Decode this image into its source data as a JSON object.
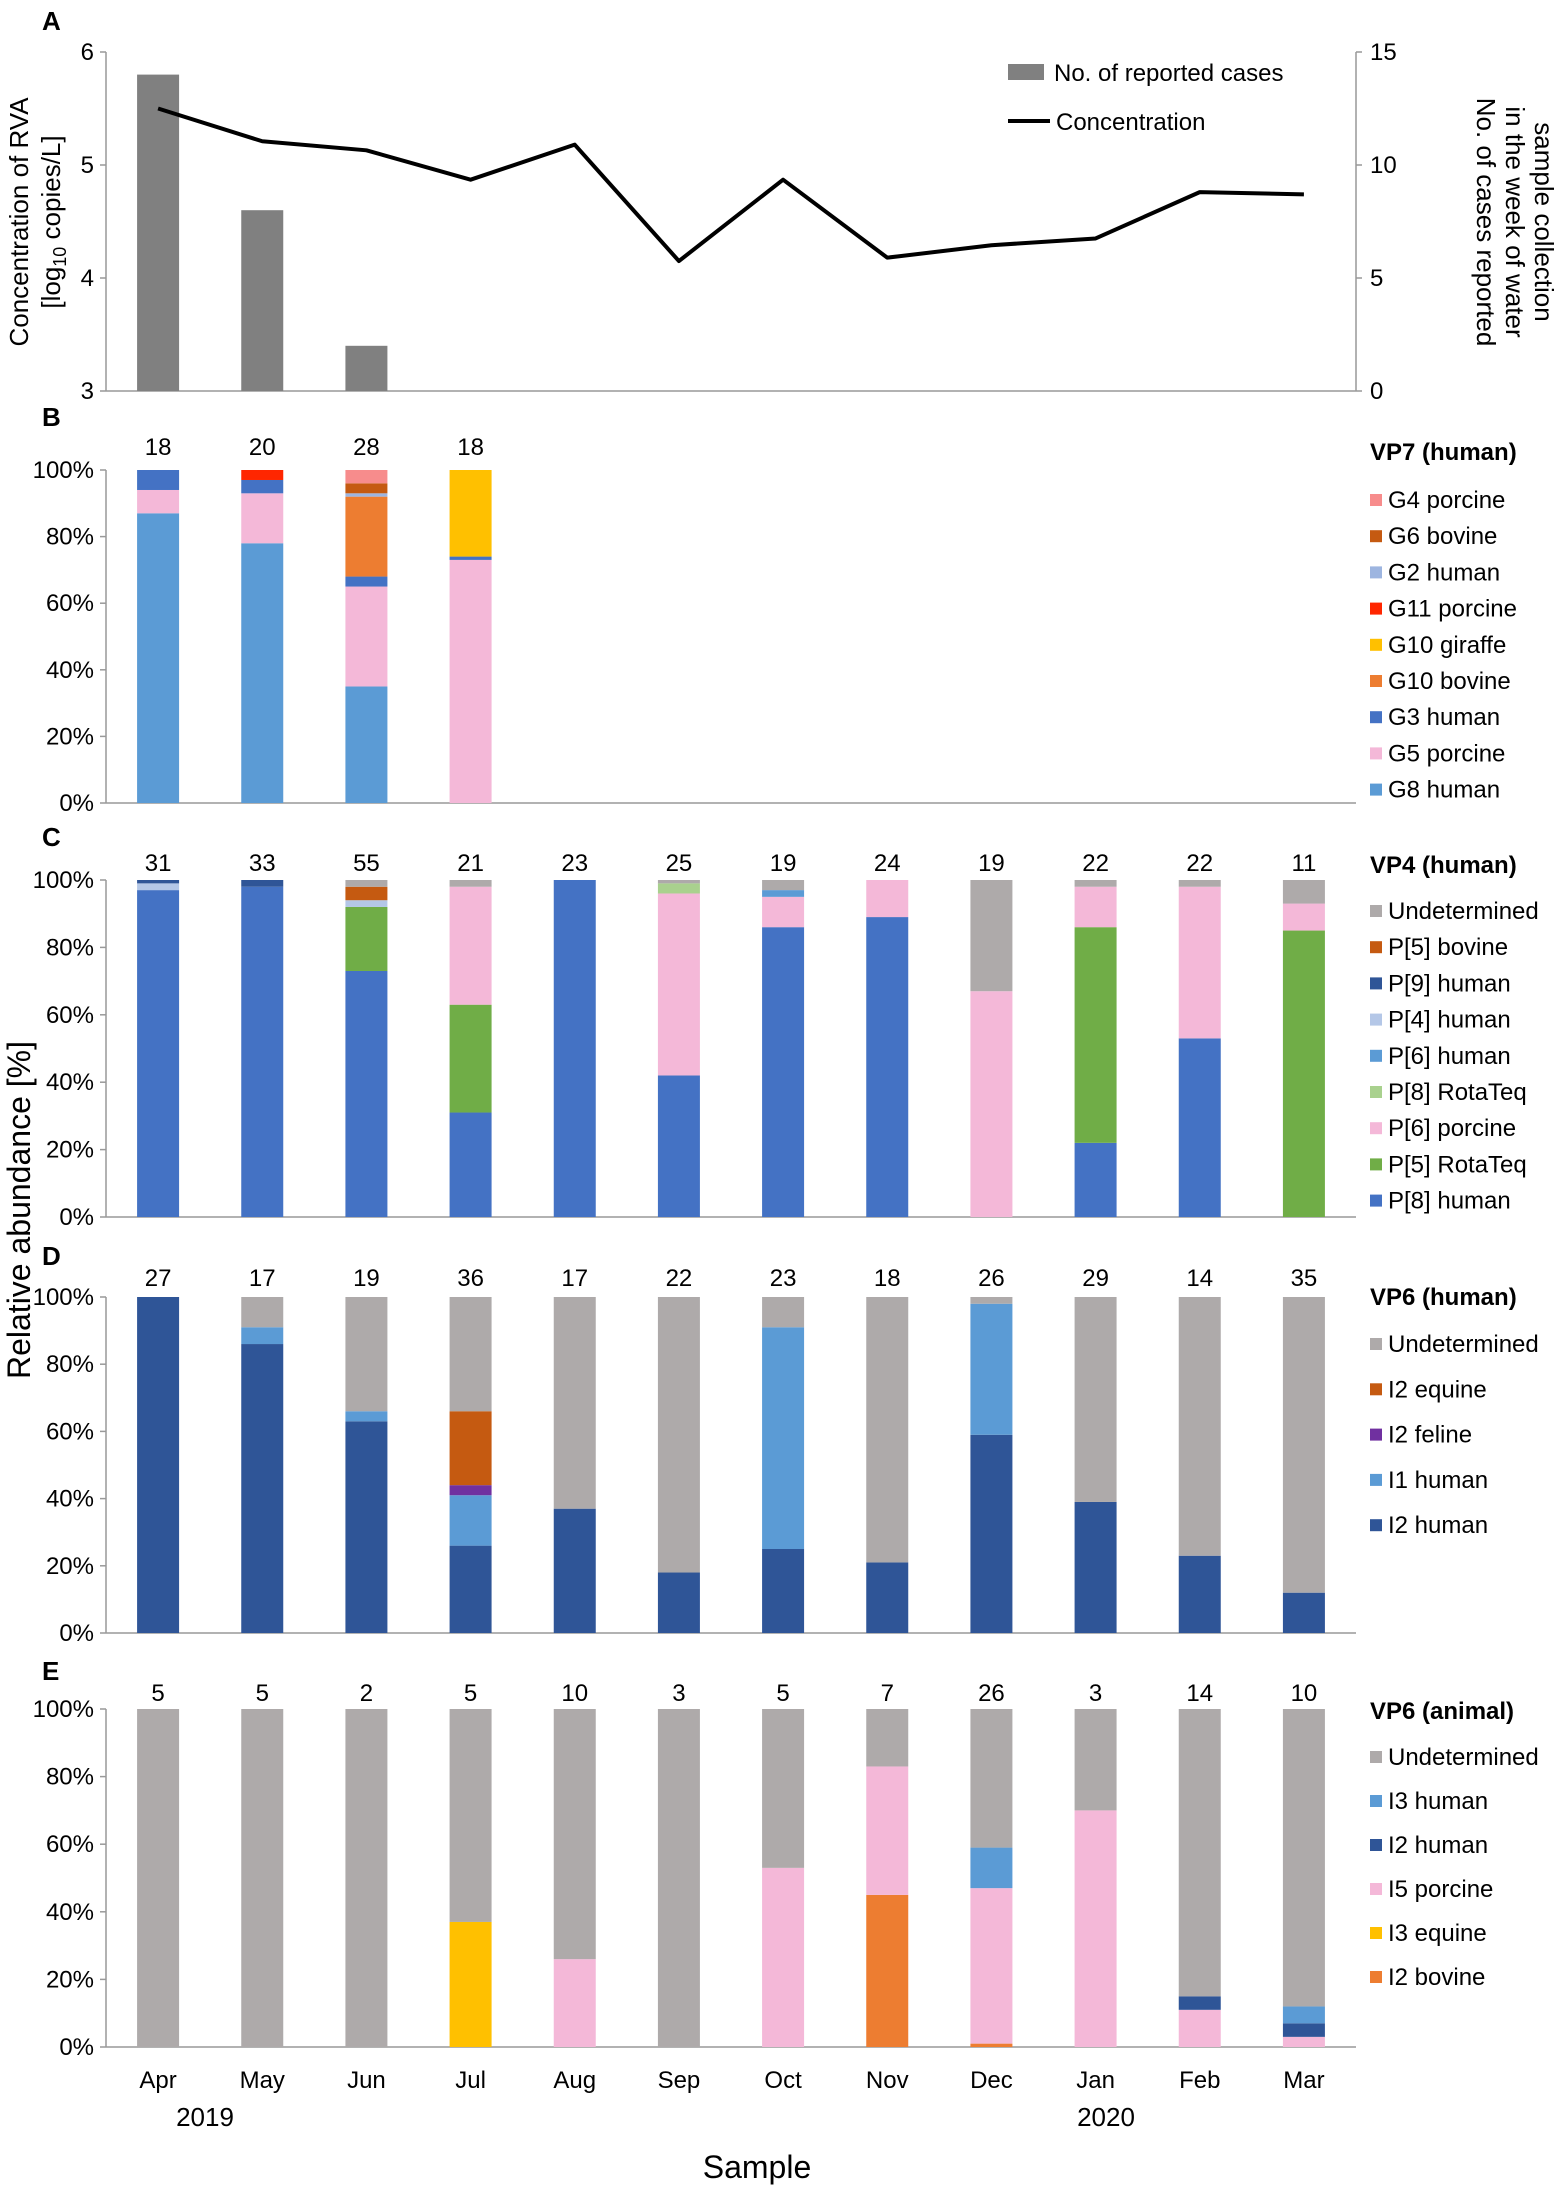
{
  "chart_data": {
    "type": "bar",
    "months": [
      "Apr",
      "May",
      "Jun",
      "Jul",
      "Aug",
      "Sep",
      "Oct",
      "Nov",
      "Dec",
      "Jan",
      "Feb",
      "Mar"
    ],
    "years": [
      "2019",
      "2020"
    ],
    "xlabel": "Sample",
    "shared_ylabel": "Relative abundance [%]",
    "panels": [
      {
        "letter": "A",
        "type": "bar+line",
        "ylabel_left": [
          "Concentration of RVA",
          "[log",
          "10",
          " copies/L]"
        ],
        "ylabel_right": [
          "No. of cases reported",
          "in the week of water",
          "sample collection"
        ],
        "ylim_left": [
          3,
          6
        ],
        "yticks_left": [
          "3",
          "4",
          "5",
          "6"
        ],
        "ylim_right": [
          0,
          15
        ],
        "yticks_right": [
          "0",
          "5",
          "10",
          "15"
        ],
        "legend": [
          "No. of reported cases",
          "Concentration"
        ],
        "series": [
          {
            "name": "No. of reported cases",
            "type": "bar",
            "axis": "right",
            "color": "#808080",
            "values": [
              14,
              8,
              2,
              null,
              null,
              null,
              null,
              null,
              null,
              null,
              null,
              null
            ]
          },
          {
            "name": "Concentration",
            "type": "line",
            "axis": "left",
            "color": "#000000",
            "values": [
              5.5,
              5.21,
              5.13,
              4.87,
              5.18,
              4.15,
              4.87,
              4.18,
              4.29,
              4.35,
              4.76,
              4.74
            ]
          }
        ]
      },
      {
        "letter": "B",
        "title": "VP7 (human)",
        "ylim": [
          0,
          100
        ],
        "yticks": [
          "0%",
          "20%",
          "40%",
          "60%",
          "80%",
          "100%"
        ],
        "counts": [
          "18",
          "20",
          "28",
          "18",
          "",
          "",
          "",
          "",
          "",
          "",
          "",
          ""
        ],
        "legend_order": [
          "G4 porcine",
          "G6 bovine",
          "G2 human",
          "G11 porcine",
          "G10 giraffe",
          "G10 bovine",
          "G3 human",
          "G5 porcine",
          "G8 human"
        ],
        "series": [
          {
            "name": "G8 human",
            "color": "#5B9BD5",
            "values": [
              87,
              78,
              35,
              0,
              0,
              0,
              0,
              0,
              0,
              0,
              0,
              0
            ]
          },
          {
            "name": "G5 porcine",
            "color": "#F4B8D8",
            "values": [
              7,
              15,
              30,
              73,
              0,
              0,
              0,
              0,
              0,
              0,
              0,
              0
            ]
          },
          {
            "name": "G3 human",
            "color": "#4472C4",
            "values": [
              6,
              4,
              3,
              1,
              0,
              0,
              0,
              0,
              0,
              0,
              0,
              0
            ]
          },
          {
            "name": "G10 bovine",
            "color": "#ED7D31",
            "values": [
              0,
              0,
              24,
              0,
              0,
              0,
              0,
              0,
              0,
              0,
              0,
              0
            ]
          },
          {
            "name": "G10 giraffe",
            "color": "#FFC000",
            "values": [
              0,
              0,
              0,
              26,
              0,
              0,
              0,
              0,
              0,
              0,
              0,
              0
            ]
          },
          {
            "name": "G11 porcine",
            "color": "#FF2600",
            "values": [
              0,
              3,
              0,
              0,
              0,
              0,
              0,
              0,
              0,
              0,
              0,
              0
            ]
          },
          {
            "name": "G2 human",
            "color": "#9DB5E0",
            "values": [
              0,
              0,
              1,
              0,
              0,
              0,
              0,
              0,
              0,
              0,
              0,
              0
            ]
          },
          {
            "name": "G6 bovine",
            "color": "#C55A11",
            "values": [
              0,
              0,
              3,
              0,
              0,
              0,
              0,
              0,
              0,
              0,
              0,
              0
            ]
          },
          {
            "name": "G4 porcine",
            "color": "#F78C8C",
            "values": [
              0,
              0,
              4,
              0,
              0,
              0,
              0,
              0,
              0,
              0,
              0,
              0
            ]
          }
        ]
      },
      {
        "letter": "C",
        "title": "VP4 (human)",
        "ylim": [
          0,
          100
        ],
        "yticks": [
          "0%",
          "20%",
          "40%",
          "60%",
          "80%",
          "100%"
        ],
        "counts": [
          "31",
          "33",
          "55",
          "21",
          "23",
          "25",
          "19",
          "24",
          "19",
          "22",
          "22",
          "11"
        ],
        "legend_order": [
          "Undetermined",
          "P[5] bovine",
          "P[9] human",
          "P[4] human",
          "P[6] human",
          "P[8] RotaTeq",
          "P[6] porcine",
          "P[5] RotaTeq",
          "P[8] human"
        ],
        "series": [
          {
            "name": "P[8] human",
            "color": "#4472C4",
            "values": [
              97,
              98,
              73,
              31,
              100,
              42,
              86,
              89,
              0,
              22,
              53,
              0
            ]
          },
          {
            "name": "P[5] RotaTeq",
            "color": "#70AD47",
            "values": [
              0,
              0,
              19,
              32,
              0,
              0,
              0,
              0,
              0,
              64,
              0,
              85
            ]
          },
          {
            "name": "P[6] porcine",
            "color": "#F4B8D8",
            "values": [
              0,
              0,
              0,
              35,
              0,
              54,
              9,
              11,
              67,
              12,
              45,
              8
            ]
          },
          {
            "name": "P[8] RotaTeq",
            "color": "#A9D18E",
            "values": [
              0,
              0,
              0,
              0,
              0,
              3,
              0,
              0,
              0,
              0,
              0,
              0
            ]
          },
          {
            "name": "P[6] human",
            "color": "#5B9BD5",
            "values": [
              0,
              0,
              0,
              0,
              0,
              0,
              2,
              0,
              0,
              0,
              0,
              0
            ]
          },
          {
            "name": "P[4] human",
            "color": "#B4C7E7",
            "values": [
              2,
              0,
              2,
              0,
              0,
              0,
              0,
              0,
              0,
              0,
              0,
              0
            ]
          },
          {
            "name": "P[9] human",
            "color": "#2F5597",
            "values": [
              1,
              2,
              0,
              0,
              0,
              0,
              0,
              0,
              0,
              0,
              0,
              0
            ]
          },
          {
            "name": "P[5] bovine",
            "color": "#C55A11",
            "values": [
              0,
              0,
              4,
              0,
              0,
              0,
              0,
              0,
              0,
              0,
              0,
              0
            ]
          },
          {
            "name": "Undetermined",
            "color": "#AEAAAA",
            "values": [
              0,
              0,
              2,
              2,
              0,
              1,
              3,
              0,
              33,
              2,
              2,
              7
            ]
          }
        ]
      },
      {
        "letter": "D",
        "title": "VP6 (human)",
        "ylim": [
          0,
          100
        ],
        "yticks": [
          "0%",
          "20%",
          "40%",
          "60%",
          "80%",
          "100%"
        ],
        "counts": [
          "27",
          "17",
          "19",
          "36",
          "17",
          "22",
          "23",
          "18",
          "26",
          "29",
          "14",
          "35"
        ],
        "legend_order": [
          "Undetermined",
          "I2 equine",
          "I2 feline",
          "I1 human",
          "I2 human"
        ],
        "series": [
          {
            "name": "I2 human",
            "color": "#2F5597",
            "values": [
              100,
              86,
              63,
              26,
              37,
              18,
              25,
              21,
              59,
              39,
              23,
              12
            ]
          },
          {
            "name": "I1 human",
            "color": "#5B9BD5",
            "values": [
              0,
              5,
              3,
              15,
              0,
              0,
              66,
              0,
              39,
              0,
              0,
              0
            ]
          },
          {
            "name": "I2 feline",
            "color": "#7030A0",
            "values": [
              0,
              0,
              0,
              3,
              0,
              0,
              0,
              0,
              0,
              0,
              0,
              0
            ]
          },
          {
            "name": "I2 equine",
            "color": "#C55A11",
            "values": [
              0,
              0,
              0,
              22,
              0,
              0,
              0,
              0,
              0,
              0,
              0,
              0
            ]
          },
          {
            "name": "Undetermined",
            "color": "#AEAAAA",
            "values": [
              0,
              9,
              34,
              34,
              63,
              82,
              9,
              79,
              2,
              61,
              77,
              88
            ]
          }
        ]
      },
      {
        "letter": "E",
        "title": "VP6 (animal)",
        "ylim": [
          0,
          100
        ],
        "yticks": [
          "0%",
          "20%",
          "40%",
          "60%",
          "80%",
          "100%"
        ],
        "counts": [
          "5",
          "5",
          "2",
          "5",
          "10",
          "3",
          "5",
          "7",
          "26",
          "3",
          "14",
          "10"
        ],
        "legend_order": [
          "Undetermined",
          "I3 human",
          "I2 human",
          "I5 porcine",
          "I3 equine",
          "I2 bovine"
        ],
        "series": [
          {
            "name": "I2 bovine",
            "color": "#ED7D31",
            "values": [
              0,
              0,
              0,
              0,
              0,
              0,
              0,
              45,
              1,
              0,
              0,
              0
            ]
          },
          {
            "name": "I3 equine",
            "color": "#FFC000",
            "values": [
              0,
              0,
              0,
              37,
              0,
              0,
              0,
              0,
              0,
              0,
              0,
              0
            ]
          },
          {
            "name": "I5 porcine",
            "color": "#F4B8D8",
            "values": [
              0,
              0,
              0,
              0,
              26,
              0,
              53,
              38,
              46,
              70,
              11,
              3
            ]
          },
          {
            "name": "I2 human",
            "color": "#2F5597",
            "values": [
              0,
              0,
              0,
              0,
              0,
              0,
              0,
              0,
              0,
              0,
              4,
              4
            ]
          },
          {
            "name": "I3 human",
            "color": "#5B9BD5",
            "values": [
              0,
              0,
              0,
              0,
              0,
              0,
              0,
              0,
              12,
              0,
              0,
              5
            ]
          },
          {
            "name": "Undetermined",
            "color": "#AEAAAA",
            "values": [
              100,
              100,
              100,
              63,
              74,
              100,
              47,
              17,
              41,
              30,
              85,
              88
            ]
          }
        ]
      }
    ]
  }
}
